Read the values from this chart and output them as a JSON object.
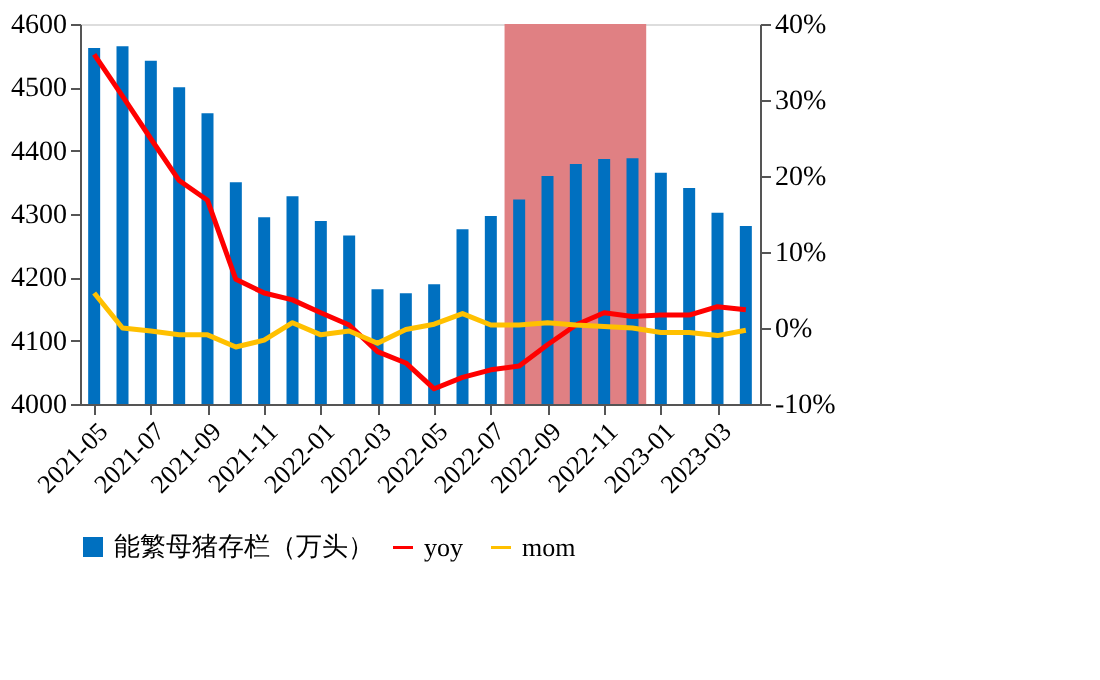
{
  "chart_data": {
    "type": "bar",
    "x": [
      "2021-05",
      "2021-06",
      "2021-07",
      "2021-08",
      "2021-09",
      "2021-10",
      "2021-11",
      "2021-12",
      "2022-01",
      "2022-02",
      "2022-03",
      "2022-04",
      "2022-05",
      "2022-06",
      "2022-07",
      "2022-08",
      "2022-09",
      "2022-10",
      "2022-11",
      "2022-12",
      "2023-01",
      "2023-02",
      "2023-03",
      "2023-04"
    ],
    "xlim": [
      "2021-04-16",
      "2023-04-16"
    ],
    "xticks": [
      "2021-05",
      "2021-07",
      "2021-09",
      "2021-11",
      "2022-01",
      "2022-03",
      "2022-05",
      "2022-07",
      "2022-09",
      "2022-11",
      "2023-01",
      "2023-03"
    ],
    "series": [
      {
        "name": "能繁母猪存栏（万头）",
        "color": "#0070c0",
        "values": [
          4562,
          4565,
          4542,
          4500,
          4459,
          4350,
          4295,
          4328,
          4289,
          4266,
          4181,
          4175,
          4189,
          4276,
          4297,
          4323,
          4360,
          4379,
          4387,
          4388,
          4365,
          4341,
          4302,
          4281
        ]
      },
      {
        "name": "yoy",
        "type": "line",
        "axis": "y2",
        "color": "#ff0000",
        "values": [
          36.0,
          30.5,
          24.9,
          19.4,
          16.8,
          6.4,
          4.6,
          3.7,
          2.0,
          0.4,
          -3.1,
          -4.6,
          -8.0,
          -6.5,
          -5.5,
          -5.0,
          -2.2,
          0.4,
          2.0,
          1.5,
          1.7,
          1.7,
          2.8,
          2.4
        ]
      },
      {
        "name": "mom",
        "type": "line",
        "axis": "y2",
        "color": "#ffc000",
        "values": [
          4.6,
          0.0,
          -0.4,
          -0.9,
          -0.9,
          -2.5,
          -1.6,
          0.7,
          -0.9,
          -0.4,
          -2.0,
          -0.2,
          0.5,
          1.9,
          0.4,
          0.4,
          0.7,
          0.4,
          0.2,
          0.0,
          -0.6,
          -0.6,
          -1.0,
          -0.3
        ]
      }
    ],
    "ylim": [
      4000,
      4600
    ],
    "yticks": [
      4000,
      4100,
      4200,
      4300,
      4400,
      4500,
      4600
    ],
    "y2lim": [
      -10,
      40
    ],
    "y2ticks": [
      {
        "value": -10,
        "label": "-10%"
      },
      {
        "value": 0,
        "label": "0%"
      },
      {
        "value": 10,
        "label": "10%"
      },
      {
        "value": 20,
        "label": "20%"
      },
      {
        "value": 30,
        "label": "30%"
      },
      {
        "value": 40,
        "label": "40%"
      }
    ],
    "bands": [
      {
        "axis": "x",
        "from": "2022-07-16",
        "to": "2022-12-16",
        "color": "#e08083"
      }
    ],
    "legend": "bottom",
    "grid": false,
    "marker": "none",
    "line_style": "solid"
  }
}
